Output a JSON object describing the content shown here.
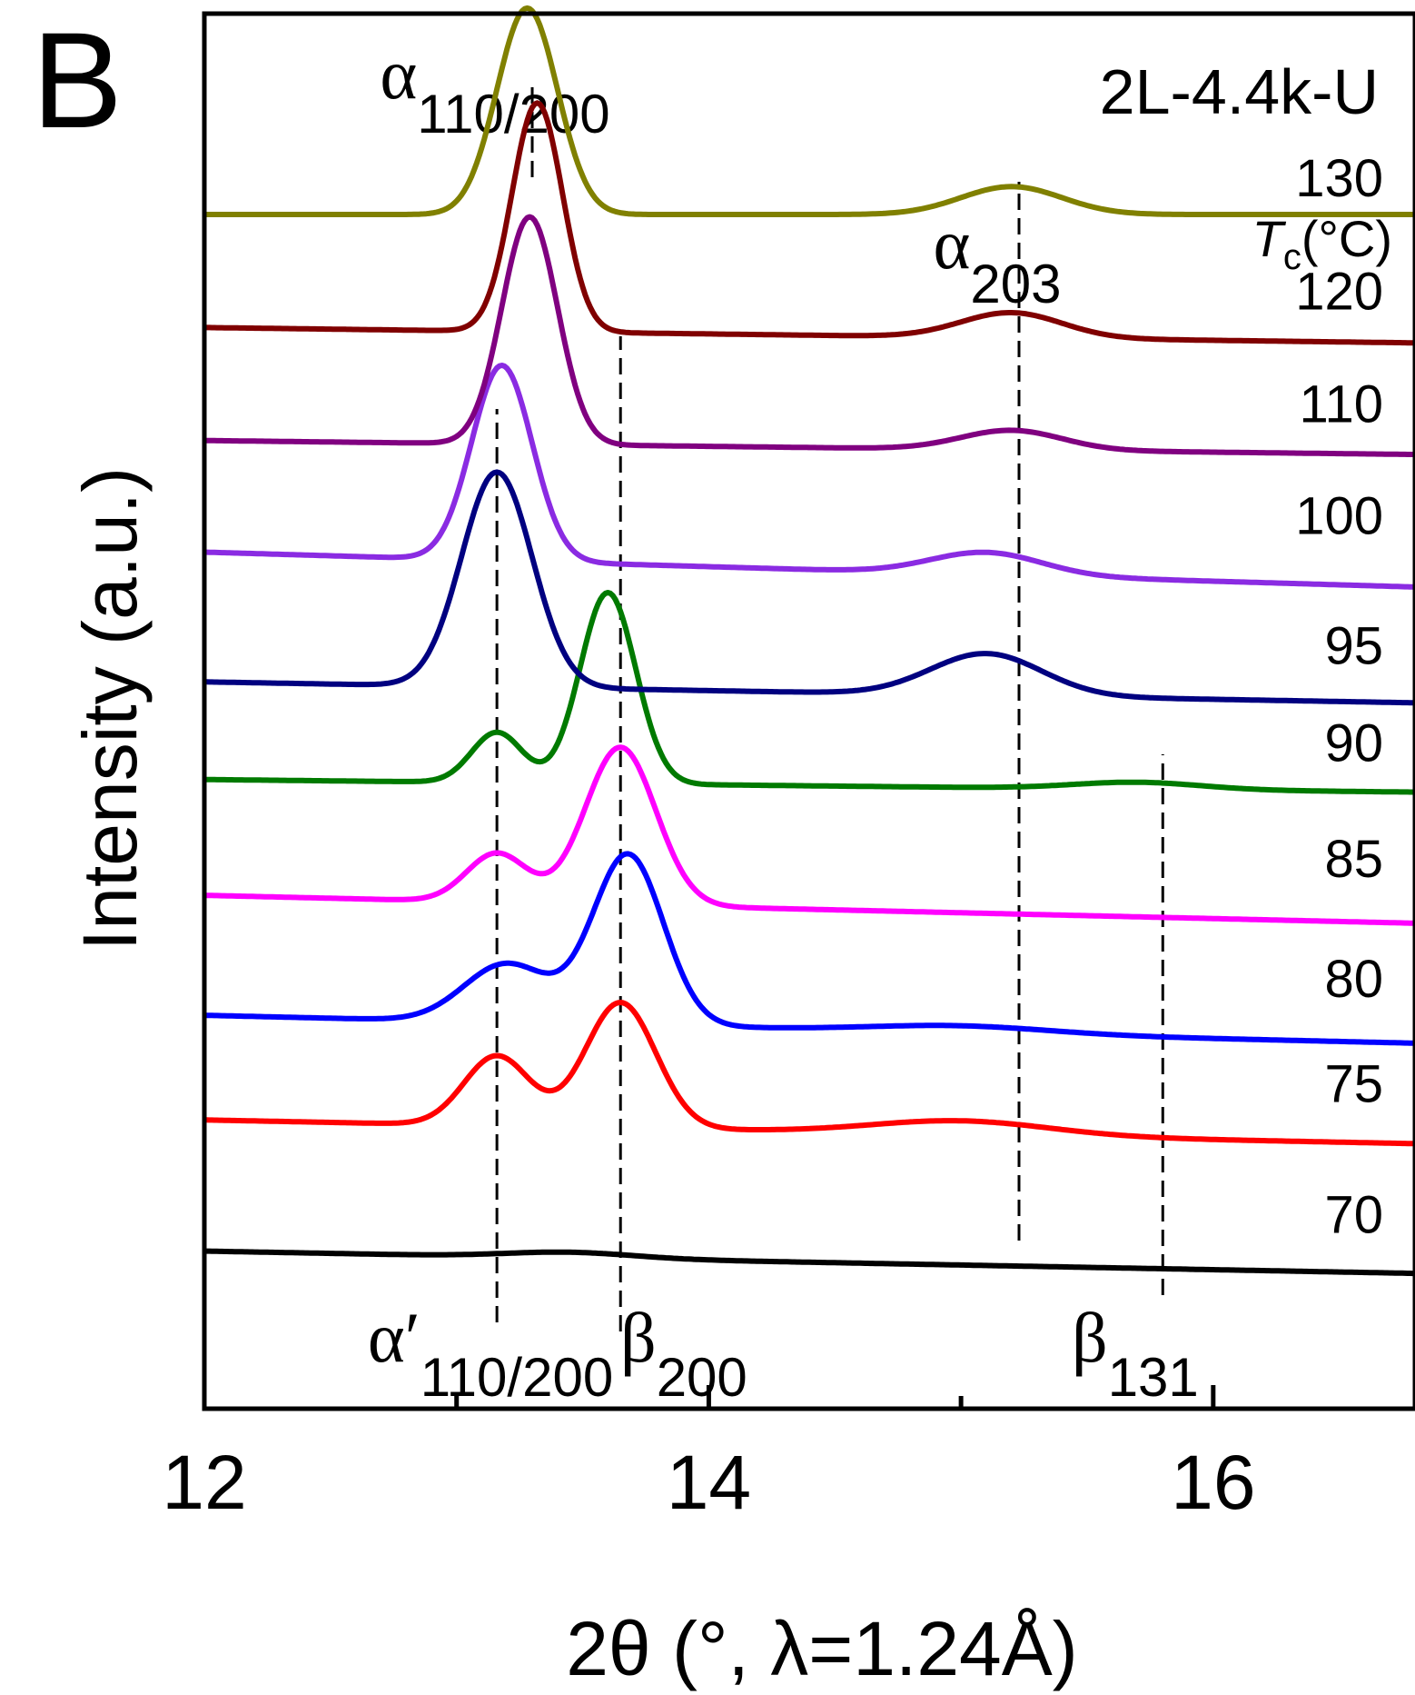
{
  "chart_data": {
    "type": "line",
    "panel_label": "B",
    "sample_label": "2L-4.4k-U",
    "legend_title_italic": "T",
    "legend_title_sub": "c",
    "legend_title_suffix": "(°C)",
    "xlabel": "2θ (°, λ=1.24Å)",
    "ylabel": "Intensity (a.u.)",
    "xlim": [
      12,
      16.8
    ],
    "ylim": [
      0,
      1
    ],
    "x_ticks": [
      12,
      14,
      16
    ],
    "x_minor_ticks": [
      13,
      15
    ],
    "grid": false,
    "peak_markers": [
      {
        "name": "α",
        "prime": "",
        "sub": "110/200",
        "x": 13.3,
        "label_position": "top"
      },
      {
        "name": "α",
        "prime": "",
        "sub": "203",
        "x": 15.23,
        "label_position": "top"
      },
      {
        "name": "α",
        "prime": "′",
        "sub": "110/200",
        "x": 13.16,
        "label_position": "bottom"
      },
      {
        "name": "β",
        "prime": "",
        "sub": "200",
        "x": 13.65,
        "label_position": "bottom"
      },
      {
        "name": "β",
        "prime": "",
        "sub": "131",
        "x": 15.8,
        "label_position": "bottom"
      }
    ],
    "series": [
      {
        "name": "70",
        "color": "#000000",
        "baseline": [
          0.113,
          0.097
        ],
        "peaks": [
          [
            13.45,
            0.004,
            0.25
          ]
        ]
      },
      {
        "name": "75",
        "color": "#ff0000",
        "baseline": [
          0.207,
          0.19
        ],
        "peaks": [
          [
            13.16,
            0.05,
            0.13
          ],
          [
            13.65,
            0.09,
            0.14
          ],
          [
            15.0,
            0.01,
            0.35
          ]
        ]
      },
      {
        "name": "80",
        "color": "#0000ff",
        "baseline": [
          0.282,
          0.262
        ],
        "peaks": [
          [
            13.2,
            0.042,
            0.17
          ],
          [
            13.68,
            0.122,
            0.14
          ],
          [
            15.0,
            0.005,
            0.35
          ]
        ]
      },
      {
        "name": "85",
        "color": "#ff00ff",
        "baseline": [
          0.368,
          0.348
        ],
        "peaks": [
          [
            13.16,
            0.035,
            0.12
          ],
          [
            13.65,
            0.113,
            0.14
          ]
        ]
      },
      {
        "name": "90",
        "color": "#007a00",
        "baseline": [
          0.451,
          0.442
        ],
        "peaks": [
          [
            13.16,
            0.036,
            0.1
          ],
          [
            13.6,
            0.137,
            0.11
          ],
          [
            15.7,
            0.005,
            0.25
          ]
        ]
      },
      {
        "name": "95",
        "color": "#000080",
        "baseline": [
          0.521,
          0.506
        ],
        "peaks": [
          [
            13.16,
            0.154,
            0.14
          ],
          [
            15.1,
            0.03,
            0.22
          ]
        ]
      },
      {
        "name": "100",
        "color": "#8a2be2",
        "baseline": [
          0.614,
          0.589
        ],
        "peaks": [
          [
            13.18,
            0.14,
            0.12
          ],
          [
            15.1,
            0.016,
            0.22
          ]
        ]
      },
      {
        "name": "110",
        "color": "#800080",
        "baseline": [
          0.694,
          0.684
        ],
        "peaks": [
          [
            13.29,
            0.163,
            0.11
          ],
          [
            15.2,
            0.014,
            0.2
          ]
        ]
      },
      {
        "name": "120",
        "color": "#800000",
        "baseline": [
          0.775,
          0.764
        ],
        "peaks": [
          [
            13.32,
            0.164,
            0.1
          ],
          [
            15.2,
            0.018,
            0.2
          ]
        ]
      },
      {
        "name": "130",
        "color": "#808000",
        "baseline": [
          0.856,
          0.856
        ],
        "peaks": [
          [
            13.28,
            0.148,
            0.12
          ],
          [
            15.2,
            0.02,
            0.2
          ]
        ]
      }
    ]
  }
}
